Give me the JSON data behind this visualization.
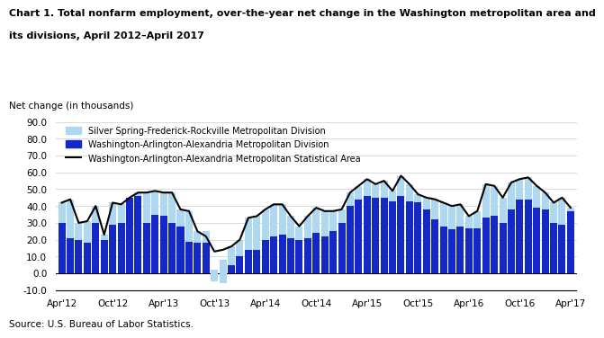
{
  "title_line1": "Chart 1. Total nonfarm employment, over-the-year net change in the Washington metropolitan area and",
  "title_line2": "its divisions, April 2012–April 2017",
  "ylabel": "Net change (in thousands)",
  "ylim": [
    -10.0,
    90.0
  ],
  "yticks": [
    -10.0,
    0.0,
    10.0,
    20.0,
    30.0,
    40.0,
    50.0,
    60.0,
    70.0,
    80.0,
    90.0
  ],
  "source": "Source: U.S. Bureau of Labor Statistics.",
  "legend": [
    "Silver Spring-Frederick-Rockville Metropolitan Division",
    "Washington-Arlington-Alexandria Metropolitan Division",
    "Washington-Arlington-Alexandria Metropolitan Statistical Area"
  ],
  "xtick_labels": [
    "Apr'12",
    "Oct'12",
    "Apr'13",
    "Oct'13",
    "Apr'14",
    "Oct'14",
    "Apr'15",
    "Oct'15",
    "Apr'16",
    "Oct'16",
    "Apr'17"
  ],
  "xtick_positions": [
    0,
    6,
    12,
    18,
    24,
    30,
    36,
    42,
    48,
    54,
    60
  ],
  "bar_dark": [
    30,
    21,
    20,
    18,
    30,
    20,
    29,
    30,
    45,
    46,
    30,
    35,
    34,
    30,
    28,
    19,
    18,
    18,
    -5,
    -6,
    5,
    10,
    14,
    14,
    20,
    22,
    23,
    21,
    20,
    21,
    24,
    22,
    25,
    30,
    40,
    44,
    46,
    45,
    45,
    43,
    46,
    43,
    42,
    38,
    32,
    28,
    26,
    28,
    27,
    27,
    33,
    34,
    30,
    38,
    44,
    44,
    39,
    38,
    30,
    29,
    37
  ],
  "bar_light": [
    12,
    23,
    10,
    13,
    10,
    3,
    13,
    11,
    0,
    2,
    18,
    14,
    14,
    18,
    10,
    18,
    7,
    7,
    7,
    14,
    11,
    10,
    19,
    20,
    18,
    19,
    18,
    13,
    8,
    13,
    15,
    15,
    12,
    8,
    8,
    8,
    10,
    8,
    10,
    6,
    12,
    10,
    5,
    7,
    12,
    14,
    14,
    13,
    7,
    10,
    20,
    18,
    15,
    16,
    12,
    13,
    13,
    10,
    12,
    16,
    2
  ],
  "line": [
    42,
    44,
    30,
    31,
    40,
    23,
    42,
    41,
    45,
    48,
    48,
    49,
    48,
    48,
    38,
    37,
    25,
    22,
    13,
    14,
    16,
    20,
    33,
    34,
    38,
    41,
    41,
    34,
    28,
    34,
    39,
    37,
    37,
    38,
    48,
    52,
    56,
    53,
    55,
    49,
    58,
    53,
    47,
    45,
    44,
    42,
    40,
    41,
    34,
    37,
    53,
    52,
    45,
    54,
    56,
    57,
    52,
    48,
    42,
    45,
    39
  ],
  "color_light": "#add8f0",
  "color_dark": "#1428c8",
  "color_line": "#000000",
  "n_bars": 61
}
